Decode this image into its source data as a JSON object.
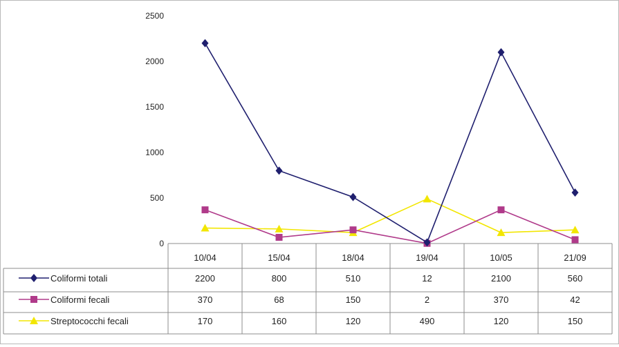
{
  "chart_data": {
    "type": "line",
    "title": "",
    "xlabel": "",
    "ylabel": "",
    "ylim": [
      0,
      2500
    ],
    "yticks": [
      0,
      500,
      1000,
      1500,
      2000,
      2500
    ],
    "grid": false,
    "legend": "data-table",
    "categories": [
      "10/04",
      "15/04",
      "18/04",
      "19/04",
      "10/05",
      "21/09"
    ],
    "series": [
      {
        "name": "Coliformi totali",
        "values": [
          2200,
          800,
          510,
          12,
          2100,
          560
        ],
        "color": "#1f1f6e",
        "marker": "diamond"
      },
      {
        "name": "Coliformi fecali",
        "values": [
          370,
          68,
          150,
          2,
          370,
          42
        ],
        "color": "#b03a8a",
        "marker": "square"
      },
      {
        "name": "Streptococchi fecali",
        "values": [
          170,
          160,
          120,
          490,
          120,
          150
        ],
        "color": "#f2e600",
        "marker": "triangle"
      }
    ],
    "table_values": [
      [
        "2200",
        "800",
        "510",
        "12",
        "2100",
        "560"
      ],
      [
        "370",
        "68",
        "150",
        "2",
        "370",
        "42"
      ],
      [
        "170",
        "160",
        "120",
        "490",
        "120",
        "150"
      ]
    ]
  }
}
